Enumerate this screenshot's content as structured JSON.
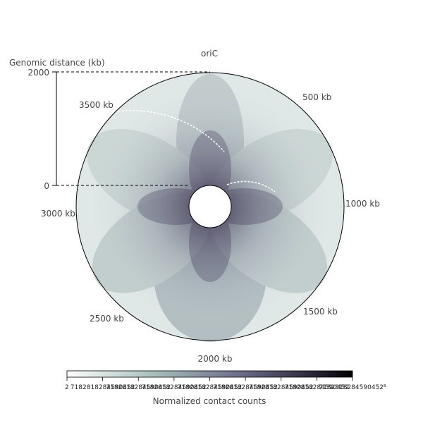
{
  "chart_data": {
    "type": "heatmap",
    "subtype": "circular contact map",
    "top_label": "oriC",
    "radial_axis": {
      "title": "Genomic distance (kb)",
      "ticks": [
        "0",
        "2000"
      ],
      "range": [
        0,
        2000
      ]
    },
    "angular_labels": [
      "500 kb",
      "1000 kb",
      "1500 kb",
      "2000 kb",
      "2500 kb",
      "3000 kb",
      "3500 kb"
    ],
    "angular_values_kb": [
      500,
      1000,
      1500,
      2000,
      2500,
      3000,
      3500
    ],
    "colorbar": {
      "label": "Normalized contact counts",
      "tick_labels": [
        "2",
        "7182818284590452",
        "7182818284590452",
        "7182818284590452",
        "7182818284590452",
        "7182818284590452",
        "7182818284590452",
        "7182818284590452",
        "7182818284590452⁸"
      ],
      "colors": [
        "#ffffff",
        "#a9c1bd",
        "#6f6e8c",
        "#2c2b3d",
        "#000000"
      ],
      "placement": "bottom"
    }
  }
}
